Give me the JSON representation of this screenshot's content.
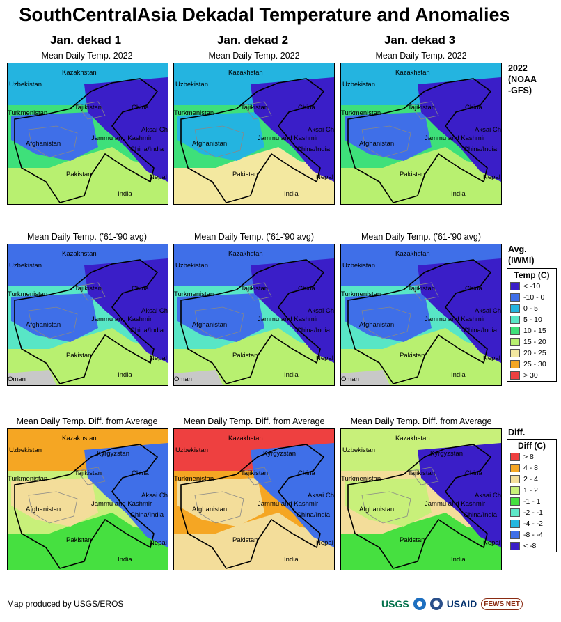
{
  "title": "SouthCentralAsia Dekadal Temperature and Anomalies",
  "columns": [
    "Jan. dekad 1",
    "Jan. dekad 2",
    "Jan. dekad 3"
  ],
  "rows": [
    {
      "panel_title": "Mean Daily Temp. 2022",
      "side_label": [
        "2022",
        "(NOAA",
        "-GFS)"
      ]
    },
    {
      "panel_title": "Mean Daily Temp. ('61-'90 avg)",
      "side_label": [
        "Avg.",
        "(IWMI)"
      ]
    },
    {
      "panel_title": "Mean Daily Temp. Diff. from Average",
      "side_label": [
        "Diff."
      ]
    }
  ],
  "map_labels": {
    "kazakhstan": "Kazakhstan",
    "uzbekistan": "Uzbekistan",
    "kyrgyzstan": "Kyrgyzstan",
    "tajikistan": "Tajikistan",
    "turkmenistan": "Turkmenistan",
    "china": "China",
    "aksai_chin": "Aksai Chin",
    "jammu_kashmir": "Jammu and Kashmir",
    "china_india": "China/India",
    "afghanistan": "Afghanistan",
    "pakistan": "Pakistan",
    "india": "India",
    "nepal": "Nepal",
    "oman": "Oman"
  },
  "temp_legend": {
    "title": "Temp (C)",
    "items": [
      {
        "label": "< -10",
        "color": "#3a1ec8"
      },
      {
        "label": "-10 - 0",
        "color": "#3f6fe8"
      },
      {
        "label": "0 - 5",
        "color": "#24b4e0"
      },
      {
        "label": "5 - 10",
        "color": "#58e6c6"
      },
      {
        "label": "10 - 15",
        "color": "#3ee07a"
      },
      {
        "label": "15 - 20",
        "color": "#b8f070"
      },
      {
        "label": "20 - 25",
        "color": "#f3e8a0"
      },
      {
        "label": "25 - 30",
        "color": "#f5a623"
      },
      {
        "label": "> 30",
        "color": "#ee4040"
      }
    ]
  },
  "diff_legend": {
    "title": "Diff (C)",
    "items": [
      {
        "label": "> 8",
        "color": "#ee4040"
      },
      {
        "label": "4 - 8",
        "color": "#f5a623"
      },
      {
        "label": "2 - 4",
        "color": "#f3dd9a"
      },
      {
        "label": "1 - 2",
        "color": "#c8f07a"
      },
      {
        "label": "-1 - 1",
        "color": "#46e040"
      },
      {
        "label": "-2 - -1",
        "color": "#5ee8c8"
      },
      {
        "label": "-4 - -2",
        "color": "#26b8e0"
      },
      {
        "label": "-8 - -4",
        "color": "#3f6fe8"
      },
      {
        "label": "< -8",
        "color": "#3a1ec8"
      }
    ]
  },
  "credit": "Map produced by USGS/EROS",
  "logos": {
    "usgs": "USGS",
    "usaid": "USAID",
    "fews": "FEWS NET"
  }
}
